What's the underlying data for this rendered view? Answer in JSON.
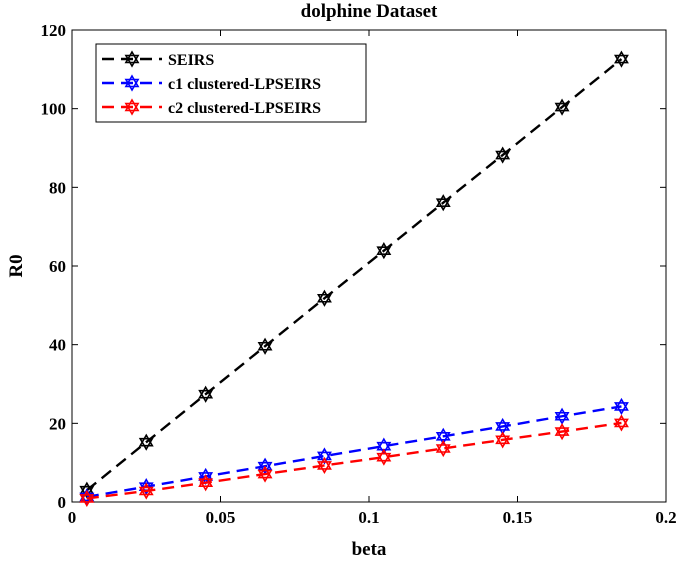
{
  "chart_data": {
    "type": "line",
    "title": "dolphine Dataset",
    "xlabel": "beta",
    "ylabel": "R0",
    "xlim": [
      0,
      0.2
    ],
    "ylim": [
      0,
      120
    ],
    "xticks": [
      0,
      0.05,
      0.1,
      0.15,
      0.2
    ],
    "xtick_labels": [
      "0",
      "0.05",
      "0.1",
      "0.15",
      "0.2"
    ],
    "yticks": [
      0,
      20,
      40,
      60,
      80,
      100,
      120
    ],
    "ytick_labels": [
      "0",
      "20",
      "40",
      "60",
      "80",
      "100",
      "120"
    ],
    "grid": false,
    "legend_position": "top-left",
    "x": [
      0.005,
      0.025,
      0.045,
      0.065,
      0.085,
      0.105,
      0.125,
      0.145,
      0.165,
      0.185
    ],
    "series": [
      {
        "name": "SEIRS",
        "color": "#000000",
        "values": [
          3.0,
          15.2,
          27.4,
          39.6,
          51.8,
          63.9,
          76.1,
          88.2,
          100.4,
          112.6
        ]
      },
      {
        "name": "c1 clustered-LPSEIRS",
        "color": "#0000ff",
        "values": [
          1.3,
          3.9,
          6.5,
          9.1,
          11.7,
          14.2,
          16.7,
          19.2,
          21.8,
          24.3
        ]
      },
      {
        "name": "c2 clustered-LPSEIRS",
        "color": "#ff0000",
        "values": [
          0.9,
          2.8,
          4.9,
          7.1,
          9.3,
          11.4,
          13.6,
          15.8,
          17.9,
          20.1
        ]
      }
    ]
  }
}
